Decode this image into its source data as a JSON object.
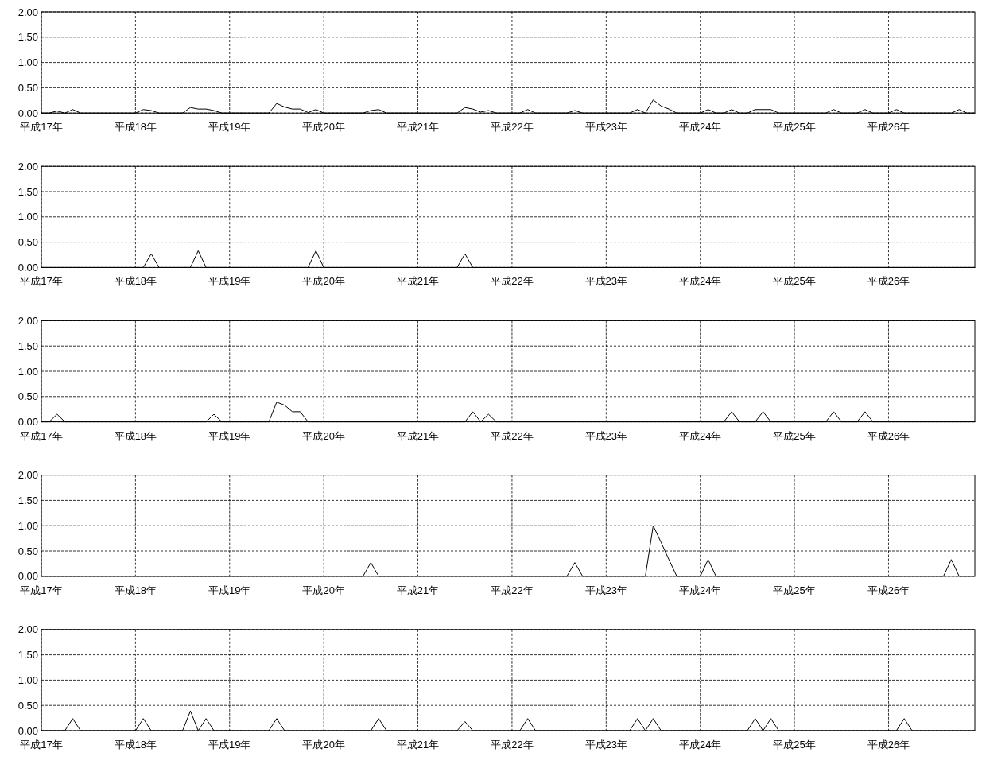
{
  "chart_data": [
    {
      "type": "line",
      "color": "#000000",
      "grid": true,
      "marker": "none",
      "line_style": "solid",
      "ylim": [
        0,
        2
      ],
      "yticks": [
        {
          "value": 0,
          "label": "0.00"
        },
        {
          "value": 0.5,
          "label": "0.50"
        },
        {
          "value": 1,
          "label": "1.00"
        },
        {
          "value": 1.5,
          "label": "1.50"
        },
        {
          "value": 2,
          "label": "2.00"
        }
      ],
      "categories": [
        "平成17年",
        null,
        null,
        null,
        null,
        null,
        null,
        null,
        null,
        null,
        null,
        null,
        "平成18年",
        null,
        null,
        null,
        null,
        null,
        null,
        null,
        null,
        null,
        null,
        null,
        "平成19年",
        null,
        null,
        null,
        null,
        null,
        null,
        null,
        null,
        null,
        null,
        null,
        "平成20年",
        null,
        null,
        null,
        null,
        null,
        null,
        null,
        null,
        null,
        null,
        null,
        "平成21年",
        null,
        null,
        null,
        null,
        null,
        null,
        null,
        null,
        null,
        null,
        null,
        "平成22年",
        null,
        null,
        null,
        null,
        null,
        null,
        null,
        null,
        null,
        null,
        null,
        "平成23年",
        null,
        null,
        null,
        null,
        null,
        null,
        null,
        null,
        null,
        null,
        null,
        "平成24年",
        null,
        null,
        null,
        null,
        null,
        null,
        null,
        null,
        null,
        null,
        null,
        "平成25年",
        null,
        null,
        null,
        null,
        null,
        null,
        null,
        null,
        null,
        null,
        null,
        "平成26年",
        null,
        null,
        null,
        null,
        null,
        null,
        null,
        null,
        null,
        null,
        null
      ],
      "values": [
        0,
        0,
        0.04,
        0,
        0.07,
        0,
        0,
        0,
        0,
        0,
        0,
        0,
        0,
        0.07,
        0.05,
        0,
        0,
        0,
        0,
        0.11,
        0.08,
        0.08,
        0.05,
        0,
        0,
        0,
        0,
        0,
        0,
        0,
        0.19,
        0.12,
        0.08,
        0.08,
        0.01,
        0.07,
        0,
        0,
        0,
        0,
        0,
        0,
        0.05,
        0.07,
        0,
        0,
        0,
        0,
        0,
        0,
        0,
        0,
        0,
        0,
        0.11,
        0.08,
        0.02,
        0.05,
        0,
        0,
        0,
        0,
        0.07,
        0,
        0,
        0,
        0,
        0,
        0.05,
        0,
        0,
        0,
        0,
        0,
        0,
        0,
        0.07,
        0,
        0.26,
        0.14,
        0.08,
        0,
        0,
        0,
        0,
        0.07,
        0,
        0,
        0.07,
        0,
        0,
        0.07,
        0.07,
        0.07,
        0,
        0,
        0,
        0,
        0,
        0,
        0,
        0.07,
        0,
        0,
        0,
        0.07,
        0,
        0,
        0,
        0.07,
        0,
        0,
        0,
        0,
        0,
        0,
        0,
        0.07,
        0,
        0
      ]
    },
    {
      "type": "line",
      "color": "#000000",
      "grid": true,
      "marker": "none",
      "line_style": "solid",
      "ylim": [
        0,
        2
      ],
      "yticks": [
        {
          "value": 0,
          "label": "0.00"
        },
        {
          "value": 0.5,
          "label": "0.50"
        },
        {
          "value": 1,
          "label": "1.00"
        },
        {
          "value": 1.5,
          "label": "1.50"
        },
        {
          "value": 2,
          "label": "2.00"
        }
      ],
      "categories": [
        "平成17年",
        null,
        null,
        null,
        null,
        null,
        null,
        null,
        null,
        null,
        null,
        null,
        "平成18年",
        null,
        null,
        null,
        null,
        null,
        null,
        null,
        null,
        null,
        null,
        null,
        "平成19年",
        null,
        null,
        null,
        null,
        null,
        null,
        null,
        null,
        null,
        null,
        null,
        "平成20年",
        null,
        null,
        null,
        null,
        null,
        null,
        null,
        null,
        null,
        null,
        null,
        "平成21年",
        null,
        null,
        null,
        null,
        null,
        null,
        null,
        null,
        null,
        null,
        null,
        "平成22年",
        null,
        null,
        null,
        null,
        null,
        null,
        null,
        null,
        null,
        null,
        null,
        "平成23年",
        null,
        null,
        null,
        null,
        null,
        null,
        null,
        null,
        null,
        null,
        null,
        "平成24年",
        null,
        null,
        null,
        null,
        null,
        null,
        null,
        null,
        null,
        null,
        null,
        "平成25年",
        null,
        null,
        null,
        null,
        null,
        null,
        null,
        null,
        null,
        null,
        null,
        "平成26年",
        null,
        null,
        null,
        null,
        null,
        null,
        null,
        null,
        null,
        null,
        null
      ],
      "values": [
        0,
        0,
        0,
        0,
        0,
        0,
        0,
        0,
        0,
        0,
        0,
        0,
        0,
        0,
        0.27,
        0,
        0,
        0,
        0,
        0,
        0.33,
        0,
        0,
        0,
        0,
        0,
        0,
        0,
        0,
        0,
        0,
        0,
        0,
        0,
        0,
        0.33,
        0,
        0,
        0,
        0,
        0,
        0,
        0,
        0,
        0,
        0,
        0,
        0,
        0,
        0,
        0,
        0,
        0,
        0,
        0.27,
        0,
        0,
        0,
        0,
        0,
        0,
        0,
        0,
        0,
        0,
        0,
        0,
        0,
        0,
        0,
        0,
        0,
        0,
        0,
        0,
        0,
        0,
        0,
        0,
        0,
        0,
        0,
        0,
        0,
        0,
        0,
        0,
        0,
        0,
        0,
        0,
        0,
        0,
        0,
        0,
        0,
        0,
        0,
        0,
        0,
        0,
        0,
        0,
        0,
        0,
        0,
        0,
        0,
        0,
        0,
        0,
        0,
        0,
        0,
        0,
        0,
        0,
        0,
        0,
        0
      ]
    },
    {
      "type": "line",
      "color": "#000000",
      "grid": true,
      "marker": "none",
      "line_style": "solid",
      "ylim": [
        0,
        2
      ],
      "yticks": [
        {
          "value": 0,
          "label": "0.00"
        },
        {
          "value": 0.5,
          "label": "0.50"
        },
        {
          "value": 1,
          "label": "1.00"
        },
        {
          "value": 1.5,
          "label": "1.50"
        },
        {
          "value": 2,
          "label": "2.00"
        }
      ],
      "categories": [
        "平成17年",
        null,
        null,
        null,
        null,
        null,
        null,
        null,
        null,
        null,
        null,
        null,
        "平成18年",
        null,
        null,
        null,
        null,
        null,
        null,
        null,
        null,
        null,
        null,
        null,
        "平成19年",
        null,
        null,
        null,
        null,
        null,
        null,
        null,
        null,
        null,
        null,
        null,
        "平成20年",
        null,
        null,
        null,
        null,
        null,
        null,
        null,
        null,
        null,
        null,
        null,
        "平成21年",
        null,
        null,
        null,
        null,
        null,
        null,
        null,
        null,
        null,
        null,
        null,
        "平成22年",
        null,
        null,
        null,
        null,
        null,
        null,
        null,
        null,
        null,
        null,
        null,
        "平成23年",
        null,
        null,
        null,
        null,
        null,
        null,
        null,
        null,
        null,
        null,
        null,
        "平成24年",
        null,
        null,
        null,
        null,
        null,
        null,
        null,
        null,
        null,
        null,
        null,
        "平成25年",
        null,
        null,
        null,
        null,
        null,
        null,
        null,
        null,
        null,
        null,
        null,
        "平成26年",
        null,
        null,
        null,
        null,
        null,
        null,
        null,
        null,
        null,
        null,
        null
      ],
      "values": [
        0,
        0,
        0.15,
        0,
        0,
        0,
        0,
        0,
        0,
        0,
        0,
        0,
        0,
        0,
        0,
        0,
        0,
        0,
        0,
        0,
        0,
        0,
        0.15,
        0,
        0,
        0,
        0,
        0,
        0,
        0,
        0.39,
        0.33,
        0.2,
        0.2,
        0,
        0,
        0,
        0,
        0,
        0,
        0,
        0,
        0,
        0,
        0,
        0,
        0,
        0,
        0,
        0,
        0,
        0,
        0,
        0,
        0,
        0.2,
        0,
        0.15,
        0,
        0,
        0,
        0,
        0,
        0,
        0,
        0,
        0,
        0,
        0,
        0,
        0,
        0,
        0,
        0,
        0,
        0,
        0,
        0,
        0,
        0,
        0,
        0,
        0,
        0,
        0,
        0,
        0,
        0,
        0.2,
        0,
        0,
        0,
        0.2,
        0,
        0,
        0,
        0,
        0,
        0,
        0,
        0,
        0.2,
        0,
        0,
        0,
        0.2,
        0,
        0,
        0,
        0,
        0,
        0,
        0,
        0,
        0,
        0,
        0,
        0,
        0,
        0
      ]
    },
    {
      "type": "line",
      "color": "#000000",
      "grid": true,
      "marker": "none",
      "line_style": "solid",
      "ylim": [
        0,
        2
      ],
      "yticks": [
        {
          "value": 0,
          "label": "0.00"
        },
        {
          "value": 0.5,
          "label": "0.50"
        },
        {
          "value": 1,
          "label": "1.00"
        },
        {
          "value": 1.5,
          "label": "1.50"
        },
        {
          "value": 2,
          "label": "2.00"
        }
      ],
      "categories": [
        "平成17年",
        null,
        null,
        null,
        null,
        null,
        null,
        null,
        null,
        null,
        null,
        null,
        "平成18年",
        null,
        null,
        null,
        null,
        null,
        null,
        null,
        null,
        null,
        null,
        null,
        "平成19年",
        null,
        null,
        null,
        null,
        null,
        null,
        null,
        null,
        null,
        null,
        null,
        "平成20年",
        null,
        null,
        null,
        null,
        null,
        null,
        null,
        null,
        null,
        null,
        null,
        "平成21年",
        null,
        null,
        null,
        null,
        null,
        null,
        null,
        null,
        null,
        null,
        null,
        "平成22年",
        null,
        null,
        null,
        null,
        null,
        null,
        null,
        null,
        null,
        null,
        null,
        "平成23年",
        null,
        null,
        null,
        null,
        null,
        null,
        null,
        null,
        null,
        null,
        null,
        "平成24年",
        null,
        null,
        null,
        null,
        null,
        null,
        null,
        null,
        null,
        null,
        null,
        "平成25年",
        null,
        null,
        null,
        null,
        null,
        null,
        null,
        null,
        null,
        null,
        null,
        "平成26年",
        null,
        null,
        null,
        null,
        null,
        null,
        null,
        null,
        null,
        null,
        null
      ],
      "values": [
        0,
        0,
        0,
        0,
        0,
        0,
        0,
        0,
        0,
        0,
        0,
        0,
        0,
        0,
        0,
        0,
        0,
        0,
        0,
        0,
        0,
        0,
        0,
        0,
        0,
        0,
        0,
        0,
        0,
        0,
        0,
        0,
        0,
        0,
        0,
        0,
        0,
        0,
        0,
        0,
        0,
        0,
        0.27,
        0,
        0,
        0,
        0,
        0,
        0,
        0,
        0,
        0,
        0,
        0,
        0,
        0,
        0,
        0,
        0,
        0,
        0,
        0,
        0,
        0,
        0,
        0,
        0,
        0,
        0.27,
        0,
        0,
        0,
        0,
        0,
        0,
        0,
        0,
        0,
        1.0,
        0.67,
        0.33,
        0,
        0,
        0,
        0,
        0.33,
        0,
        0,
        0,
        0,
        0,
        0,
        0,
        0,
        0,
        0,
        0,
        0,
        0,
        0,
        0,
        0,
        0,
        0,
        0,
        0,
        0,
        0,
        0,
        0,
        0,
        0,
        0,
        0,
        0,
        0,
        0.33,
        0,
        0,
        0
      ]
    },
    {
      "type": "line",
      "color": "#000000",
      "grid": true,
      "marker": "none",
      "line_style": "solid",
      "ylim": [
        0,
        2
      ],
      "yticks": [
        {
          "value": 0,
          "label": "0.00"
        },
        {
          "value": 0.5,
          "label": "0.50"
        },
        {
          "value": 1,
          "label": "1.00"
        },
        {
          "value": 1.5,
          "label": "1.50"
        },
        {
          "value": 2,
          "label": "2.00"
        }
      ],
      "categories": [
        "平成17年",
        null,
        null,
        null,
        null,
        null,
        null,
        null,
        null,
        null,
        null,
        null,
        "平成18年",
        null,
        null,
        null,
        null,
        null,
        null,
        null,
        null,
        null,
        null,
        null,
        "平成19年",
        null,
        null,
        null,
        null,
        null,
        null,
        null,
        null,
        null,
        null,
        null,
        "平成20年",
        null,
        null,
        null,
        null,
        null,
        null,
        null,
        null,
        null,
        null,
        null,
        "平成21年",
        null,
        null,
        null,
        null,
        null,
        null,
        null,
        null,
        null,
        null,
        null,
        "平成22年",
        null,
        null,
        null,
        null,
        null,
        null,
        null,
        null,
        null,
        null,
        null,
        "平成23年",
        null,
        null,
        null,
        null,
        null,
        null,
        null,
        null,
        null,
        null,
        null,
        "平成24年",
        null,
        null,
        null,
        null,
        null,
        null,
        null,
        null,
        null,
        null,
        null,
        "平成25年",
        null,
        null,
        null,
        null,
        null,
        null,
        null,
        null,
        null,
        null,
        null,
        "平成26年",
        null,
        null,
        null,
        null,
        null,
        null,
        null,
        null,
        null,
        null,
        null
      ],
      "values": [
        0,
        0,
        0,
        0,
        0.24,
        0,
        0,
        0,
        0,
        0,
        0,
        0,
        0,
        0.24,
        0,
        0,
        0,
        0,
        0,
        0.39,
        0,
        0.24,
        0,
        0,
        0,
        0,
        0,
        0,
        0,
        0,
        0.24,
        0,
        0,
        0,
        0,
        0,
        0,
        0,
        0,
        0,
        0,
        0,
        0,
        0.24,
        0,
        0,
        0,
        0,
        0,
        0,
        0,
        0,
        0,
        0,
        0.18,
        0,
        0,
        0,
        0,
        0,
        0,
        0,
        0.24,
        0,
        0,
        0,
        0,
        0,
        0,
        0,
        0,
        0,
        0,
        0,
        0,
        0,
        0.24,
        0,
        0.24,
        0,
        0,
        0,
        0,
        0,
        0,
        0,
        0,
        0,
        0,
        0,
        0,
        0.24,
        0,
        0.24,
        0,
        0,
        0,
        0,
        0,
        0,
        0,
        0,
        0,
        0,
        0,
        0,
        0,
        0,
        0,
        0,
        0.24,
        0,
        0,
        0,
        0,
        0,
        0,
        0,
        0,
        0
      ]
    }
  ]
}
